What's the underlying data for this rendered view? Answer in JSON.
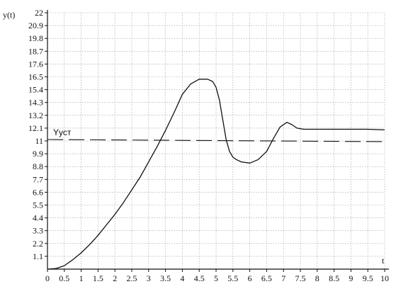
{
  "chart_data": {
    "type": "line",
    "ylabel": "y(t)",
    "xlabel": "t",
    "xlim": [
      0,
      10
    ],
    "ylim": [
      0,
      22
    ],
    "grid": true,
    "x_ticks": [
      "0",
      "0.5",
      "1",
      "1.5",
      "2",
      "2.5",
      "3",
      "3.5",
      "4",
      "4.5",
      "5",
      "5.5",
      "6",
      "6.5",
      "7",
      "7.5",
      "8",
      "8.5",
      "9",
      "9.5",
      "10"
    ],
    "y_ticks": [
      "1.1",
      "2.2",
      "3.3",
      "4.4",
      "5.5",
      "6.6",
      "7.7",
      "8.8",
      "9.9",
      "11",
      "12.1",
      "13.2",
      "14.3",
      "15.4",
      "16.5",
      "17.6",
      "18.7",
      "19.8",
      "20.9",
      "22"
    ],
    "series": [
      {
        "x": [
          0,
          0.25,
          0.5,
          0.75,
          1,
          1.25,
          1.5,
          1.75,
          2,
          2.25,
          2.5,
          2.75,
          3,
          3.25,
          3.5,
          3.75,
          4,
          4.25,
          4.5,
          4.75,
          4.9,
          5,
          5.1,
          5.2,
          5.3,
          5.4,
          5.5,
          5.6,
          5.75,
          6,
          6.25,
          6.5,
          6.7,
          6.9,
          7.1,
          7.25,
          7.4,
          7.6,
          8,
          8.5,
          9,
          9.5,
          10
        ],
        "y": [
          0,
          0.05,
          0.3,
          0.8,
          1.4,
          2.1,
          2.9,
          3.8,
          4.7,
          5.7,
          6.8,
          7.9,
          9.2,
          10.5,
          11.9,
          13.4,
          15.0,
          15.9,
          16.3,
          16.3,
          16.1,
          15.6,
          14.5,
          12.8,
          11.1,
          10.1,
          9.6,
          9.4,
          9.2,
          9.1,
          9.4,
          10.1,
          11.2,
          12.2,
          12.6,
          12.4,
          12.1,
          12.0,
          12.0,
          12.0,
          12.0,
          12.0,
          11.95
        ]
      }
    ],
    "reference_line": {
      "label": "Yуст",
      "y": 11
    }
  }
}
